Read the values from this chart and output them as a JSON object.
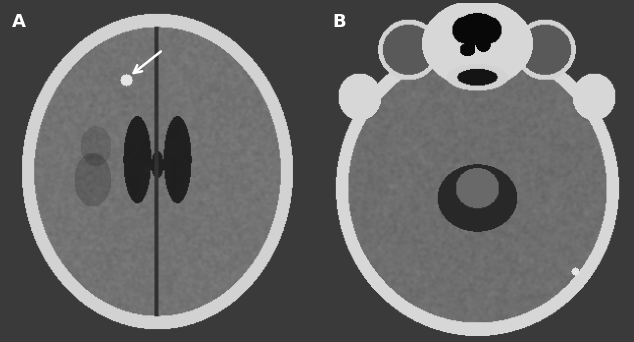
{
  "background_color": "#3a3a3a",
  "label_A": "A",
  "label_B": "B",
  "label_color": "white",
  "label_fontsize": 13,
  "label_fontweight": "bold",
  "fig_width": 6.34,
  "fig_height": 3.42
}
